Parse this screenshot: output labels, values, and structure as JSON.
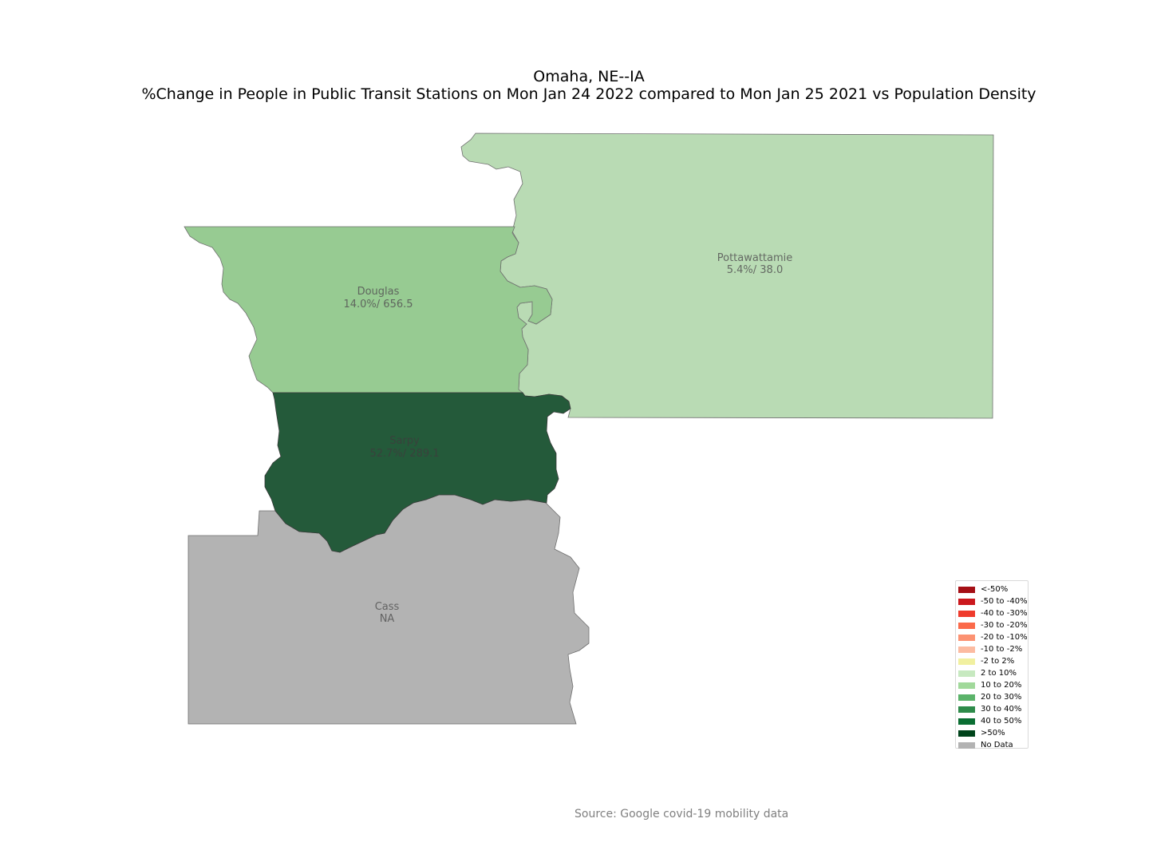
{
  "title": {
    "line1": "Omaha, NE--IA",
    "line2": "%Change in People in Public Transit Stations on Mon Jan 24 2022 compared to Mon Jan 25 2021 vs Population Density"
  },
  "counties": {
    "pottawattamie": {
      "name": "Pottawattamie",
      "value": "5.4%/ 38.0",
      "color": "#b9dbb4"
    },
    "douglas": {
      "name": "Douglas",
      "value": "14.0%/ 656.5",
      "color": "#97cb92"
    },
    "sarpy": {
      "name": "Sarpy",
      "value": "52.7%/ 289.1",
      "color": "#245a3a"
    },
    "cass": {
      "name": "Cass",
      "value": "NA",
      "color": "#b3b3b3"
    }
  },
  "legend": [
    {
      "label": "<-50%",
      "color": "#a50f15"
    },
    {
      "label": "-50 to -40%",
      "color": "#cb181d"
    },
    {
      "label": "-40 to -30%",
      "color": "#ef3b2c"
    },
    {
      "label": "-30 to -20%",
      "color": "#fb6a4a"
    },
    {
      "label": "-20 to -10%",
      "color": "#fc9272"
    },
    {
      "label": "-10 to -2%",
      "color": "#fcbba1"
    },
    {
      "label": "-2 to 2%",
      "color": "#f1f0a0"
    },
    {
      "label": "2 to 10%",
      "color": "#c7e9c0"
    },
    {
      "label": "10 to 20%",
      "color": "#a1d99b"
    },
    {
      "label": "20 to 30%",
      "color": "#5bb36a"
    },
    {
      "label": "30 to 40%",
      "color": "#2e8b4a"
    },
    {
      "label": "40 to 50%",
      "color": "#0a6e32"
    },
    {
      "label": ">50%",
      "color": "#00441b"
    },
    {
      "label": "No Data",
      "color": "#b3b3b3"
    }
  ],
  "source": "Source: Google covid-19 mobility data"
}
